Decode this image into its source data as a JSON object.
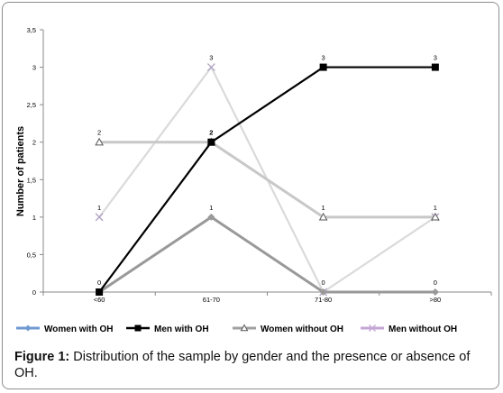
{
  "chart_data": {
    "type": "line",
    "categories": [
      "<60",
      "61-70",
      "71-80",
      ">80"
    ],
    "ylabel": "Number of patients",
    "ylim": [
      0,
      3.5
    ],
    "yticks": [
      "0",
      "0,5",
      "1",
      "1,5",
      "2",
      "2,5",
      "3",
      "3,5"
    ],
    "grid": false,
    "legend_position": "bottom",
    "series": [
      {
        "name": "Women with OH",
        "values": [
          0,
          1,
          0,
          0
        ],
        "color": "#999999",
        "marker": "diamond",
        "legend_color": "#6f9ad0",
        "labels": [
          "0",
          "1",
          "0",
          "0"
        ]
      },
      {
        "name": "Men with OH",
        "values": [
          0,
          2,
          3,
          3
        ],
        "color": "#000000",
        "marker": "square",
        "legend_color": "#000000",
        "labels": [
          "0",
          "2",
          "3",
          "3"
        ]
      },
      {
        "name": "Women without OH",
        "values": [
          2,
          2,
          1,
          1
        ],
        "color": "#c8c8c8",
        "marker": "triangle",
        "legend_color": "#a0a0a0",
        "labels": [
          "2",
          "2",
          "1",
          "1"
        ]
      },
      {
        "name": "Men without OH",
        "values": [
          1,
          3,
          0,
          1
        ],
        "color": "#dadada",
        "marker": "x",
        "legend_color": "#c4a6d6",
        "labels": [
          "1",
          "3",
          "0",
          ""
        ]
      }
    ]
  },
  "caption": {
    "label": "Figure 1:",
    "text": " Distribution of the sample by gender and the presence or absence of OH."
  }
}
